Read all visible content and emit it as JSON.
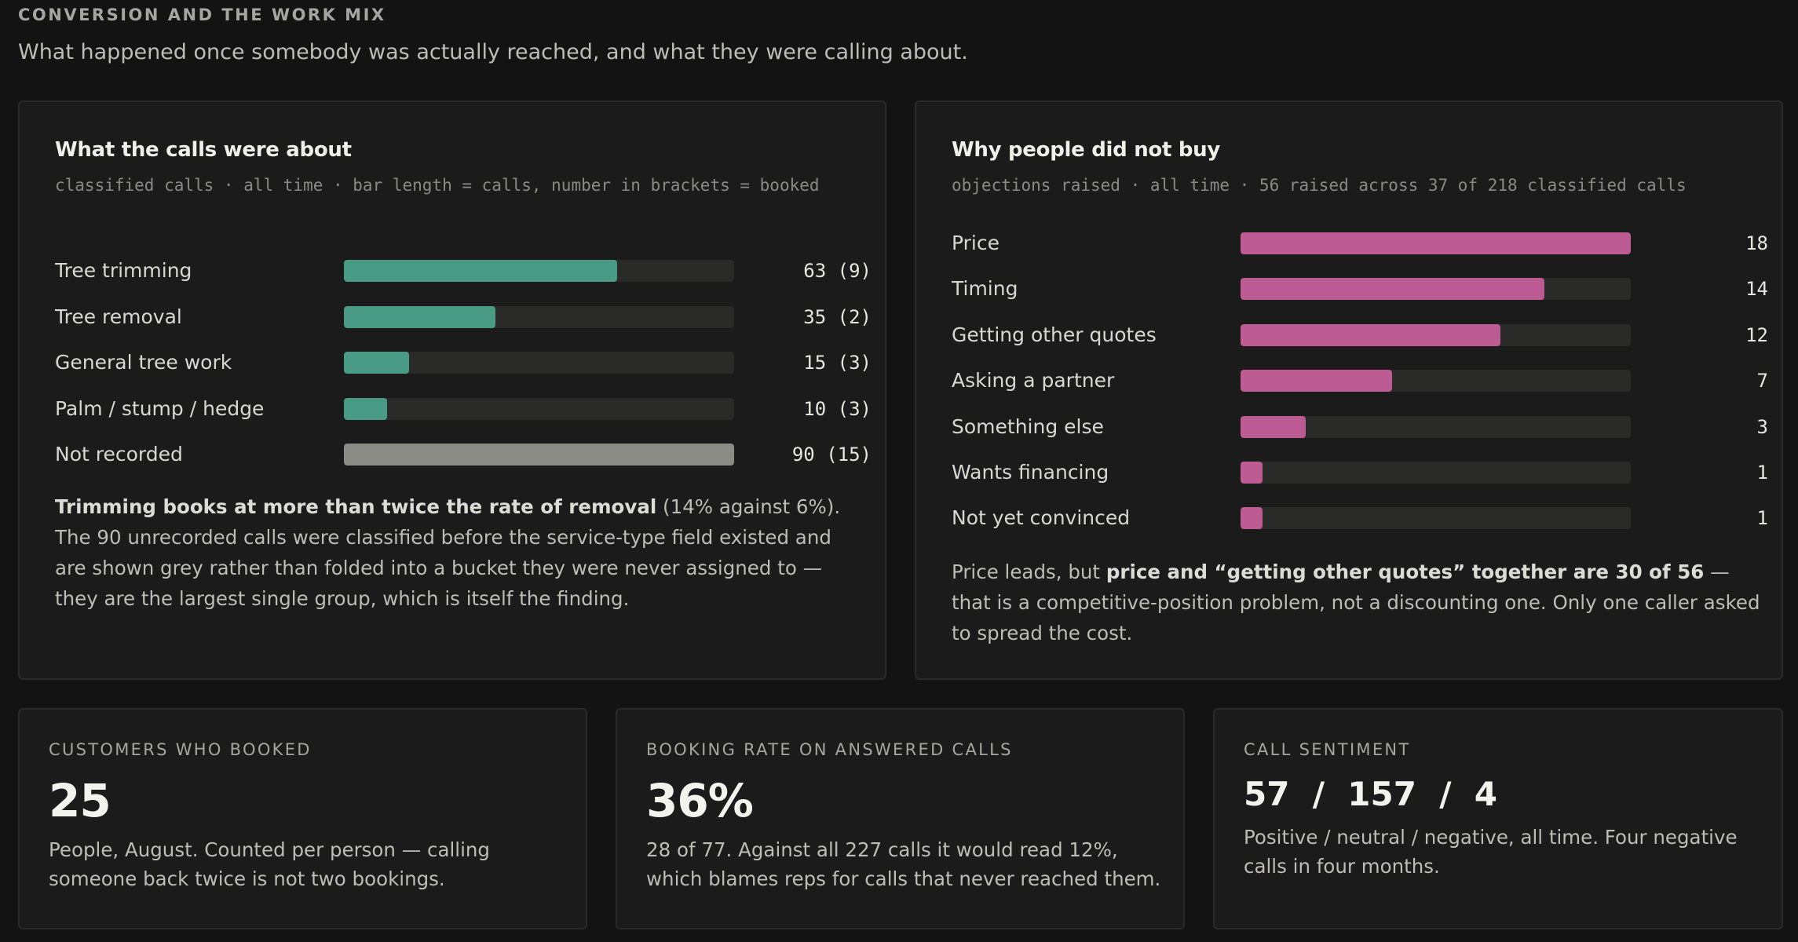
{
  "section": {
    "kicker": "CONVERSION AND THE WORK MIX",
    "lede": "What happened once somebody was actually reached, and what they were calling about."
  },
  "calls_card": {
    "title": "What the calls were about",
    "subtitle": "classified calls · all time · bar length = calls, number in brackets = booked",
    "note_bold": "Trimming books at more than twice the rate of removal",
    "note_rest": " (14% against 6%). The 90 unrecorded calls were classified before the service-type field existed and are shown grey rather than folded into a bucket they were never assigned to — they are the largest single group, which is itself the finding."
  },
  "objections_card": {
    "title": "Why people did not buy",
    "subtitle": "objections raised · all time · 56 raised across 37 of 218 classified calls",
    "note_pre": "Price leads, but ",
    "note_bold": "price and “getting other quotes” together are 30 of 56",
    "note_post": " — that is a competitive-position problem, not a discounting one. Only one caller asked to spread the cost."
  },
  "stats": {
    "booked": {
      "label": "CUSTOMERS WHO BOOKED",
      "value": "25",
      "text": "People, August. Counted per person — calling someone back twice is not two bookings."
    },
    "rate": {
      "label": "BOOKING RATE ON ANSWERED CALLS",
      "value": "36%",
      "text": "28 of 77. Against all 227 calls it would read 12%, which blames reps for calls that never reached them."
    },
    "sentiment": {
      "label": "CALL SENTIMENT",
      "value": "57  /  157  /  4",
      "text": "Positive / neutral / negative, all time. Four negative calls in four months."
    }
  },
  "colors": {
    "teal": "#4a9b85",
    "grey": "#8c8c86",
    "pink": "#bd5c93",
    "track": "#2a2a28"
  },
  "chart_data": [
    {
      "type": "bar",
      "orientation": "horizontal",
      "title": "What the calls were about",
      "subtitle": "classified calls · all time · bar length = calls, number in brackets = booked",
      "categories": [
        "Tree trimming",
        "Tree removal",
        "General tree work",
        "Palm / stump / hedge",
        "Not recorded"
      ],
      "values": [
        63,
        35,
        15,
        10,
        90
      ],
      "booked": [
        9,
        2,
        3,
        3,
        15
      ],
      "value_labels": [
        "63 (9)",
        "35 (2)",
        "15 (3)",
        "10 (3)",
        "90 (15)"
      ],
      "bar_colors": [
        "#4a9b85",
        "#4a9b85",
        "#4a9b85",
        "#4a9b85",
        "#8c8c86"
      ],
      "xlim": [
        0,
        90
      ],
      "grid": false
    },
    {
      "type": "bar",
      "orientation": "horizontal",
      "title": "Why people did not buy",
      "subtitle": "objections raised · all time · 56 raised across 37 of 218 classified calls",
      "categories": [
        "Price",
        "Timing",
        "Getting other quotes",
        "Asking a partner",
        "Something else",
        "Wants financing",
        "Not yet convinced"
      ],
      "values": [
        18,
        14,
        12,
        7,
        3,
        1,
        1
      ],
      "value_labels": [
        "18",
        "14",
        "12",
        "7",
        "3",
        "1",
        "1"
      ],
      "bar_colors": [
        "#bd5c93",
        "#bd5c93",
        "#bd5c93",
        "#bd5c93",
        "#bd5c93",
        "#bd5c93",
        "#bd5c93"
      ],
      "xlim": [
        0,
        18
      ],
      "grid": false
    }
  ]
}
